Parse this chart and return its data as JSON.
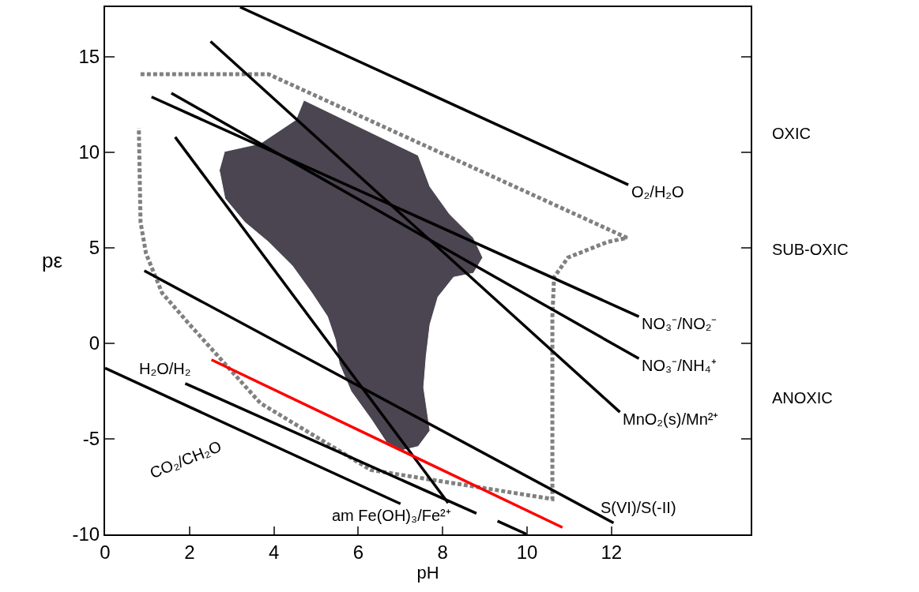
{
  "chart_data": {
    "type": "line",
    "xlabel": "pH",
    "ylabel": "pε",
    "xlim": [
      0,
      15.3
    ],
    "ylim": [
      -10,
      17.6
    ],
    "xticks": [
      0,
      2,
      4,
      6,
      8,
      10,
      12
    ],
    "yticks": [
      -10,
      -5,
      0,
      5,
      10,
      15
    ],
    "grid": false,
    "legend": false,
    "marker": "none",
    "series": [
      {
        "type": "area",
        "color": "#4a4550",
        "x": [
          2.84,
          3.68,
          4.52,
          4.71,
          7.42,
          7.7,
          8.17,
          8.73,
          8.95,
          8.73,
          8.26,
          7.89,
          7.7,
          7.61,
          7.55,
          7.7,
          7.42,
          7.05,
          6.67,
          6.3,
          5.83,
          5.55,
          5.46,
          5.27,
          4.9,
          4.43,
          3.87,
          3.31,
          2.84,
          2.71
        ],
        "values": [
          10.05,
          10.46,
          11.7,
          12.73,
          9.84,
          8.2,
          6.75,
          5.52,
          4.49,
          3.67,
          3.46,
          2.43,
          0.99,
          -0.66,
          -2.31,
          -4.57,
          -5.4,
          -5.6,
          -5.19,
          -3.95,
          -2.51,
          -1.07,
          0.16,
          1.4,
          2.64,
          4.08,
          5.31,
          6.34,
          7.58,
          9.02
        ]
      },
      {
        "type": "line",
        "color": "#808080",
        "line_style": "dotted",
        "x": [
          0.84,
          3.87,
          12.37,
          11.91,
          10.97,
          10.64,
          10.6,
          10.6,
          6.3,
          3.68,
          2.0,
          1.35,
          0.97,
          0.84,
          0.8
        ],
        "values": [
          14.09,
          14.09,
          5.52,
          5.31,
          4.49,
          3.46,
          1.4,
          -8.15,
          -6.63,
          -3.13,
          0.99,
          2.64,
          4.7,
          6.34,
          11.28
        ]
      },
      {
        "type": "line",
        "name": "O₂/H₂O",
        "color": "#000000",
        "x": [
          3.2,
          12.4
        ],
        "values": [
          17.6,
          8.3
        ]
      },
      {
        "type": "line",
        "name": "NO₃⁻/NO₂⁻",
        "color": "#000000",
        "x": [
          1.1,
          12.65
        ],
        "values": [
          12.9,
          1.4
        ]
      },
      {
        "type": "line",
        "name": "NO₃⁻/NH₄⁺",
        "color": "#000000",
        "x": [
          1.57,
          12.65
        ],
        "values": [
          13.1,
          -0.8
        ]
      },
      {
        "type": "line",
        "name": "MnO₂(s)/Mn²⁺",
        "color": "#000000",
        "x": [
          2.5,
          12.2
        ],
        "values": [
          15.8,
          -3.6
        ]
      },
      {
        "type": "line",
        "name": "am Fe(OH)₃/Fe²⁺",
        "color": "#000000",
        "x": [
          1.66,
          8.13
        ],
        "values": [
          10.8,
          -8.36
        ]
      },
      {
        "type": "line",
        "name": "S(VI)/S(-II)",
        "color": "#000000",
        "x": [
          0.93,
          12.05
        ],
        "values": [
          3.8,
          -9.4
        ]
      },
      {
        "type": "line",
        "name": "H₂O/H₂",
        "color": "#000000",
        "x": [
          1.9,
          8.8,
          null,
          9.3,
          10.0
        ],
        "values": [
          -2.1,
          -8.9,
          null,
          -9.3,
          -10
        ]
      },
      {
        "type": "line",
        "name": "CO₂/CH₂O",
        "color": "#000000",
        "x": [
          0.0,
          7.0
        ],
        "values": [
          -1.3,
          -8.4
        ]
      },
      {
        "type": "line",
        "color": "#ff0000",
        "x": [
          2.52,
          10.84
        ],
        "values": [
          -0.86,
          -9.64
        ]
      }
    ],
    "annotations": [
      "OXIC",
      "SUB-OXIC",
      "ANOXIC"
    ]
  }
}
